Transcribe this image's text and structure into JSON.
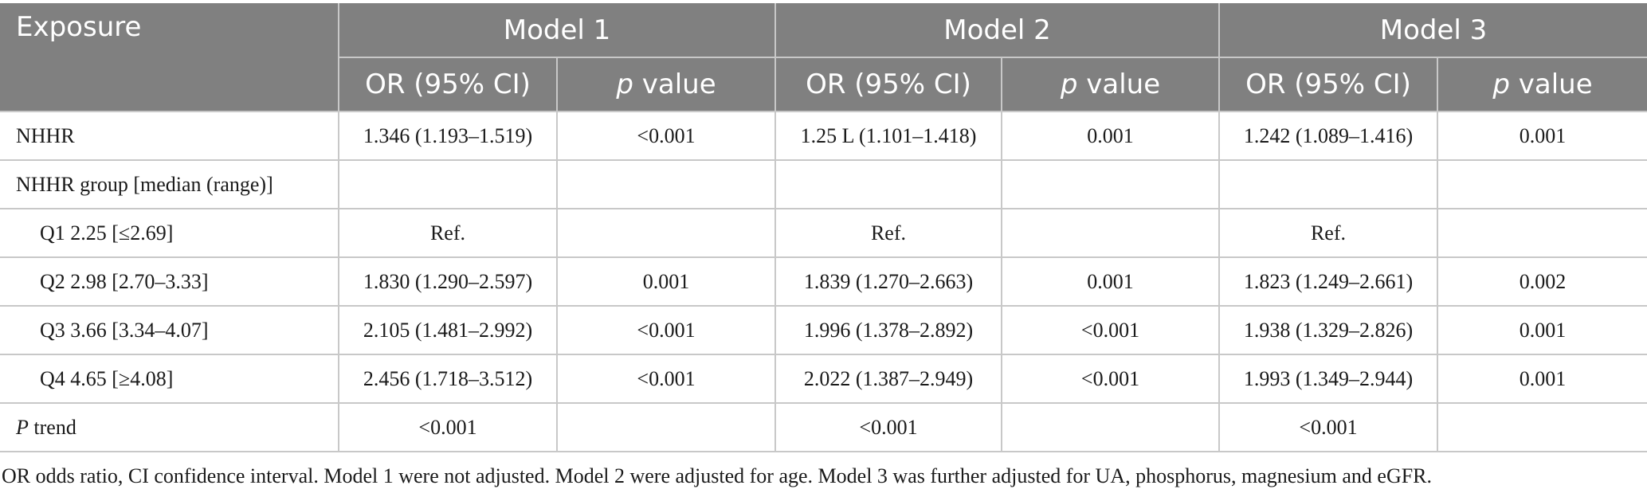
{
  "header": {
    "exposure": "Exposure",
    "models": [
      "Model 1",
      "Model 2",
      "Model 3"
    ],
    "or_label": "OR (95% CI)",
    "p_italic": "p",
    "p_rest": " value"
  },
  "rows": [
    {
      "exposure": "NHHR",
      "m1_or": "1.346 (1.193–1.519)",
      "m1_p": "<0.001",
      "m2_or": "1.25 L (1.101–1.418)",
      "m2_p": "0.001",
      "m3_or": "1.242 (1.089–1.416)",
      "m3_p": "0.001"
    },
    {
      "exposure": "NHHR group [median (range)]",
      "m1_or": "",
      "m1_p": "",
      "m2_or": "",
      "m2_p": "",
      "m3_or": "",
      "m3_p": ""
    },
    {
      "exposure": "Q1 2.25 [≤2.69]",
      "m1_or": "Ref.",
      "m1_p": "",
      "m2_or": "Ref.",
      "m2_p": "",
      "m3_or": "Ref.",
      "m3_p": ""
    },
    {
      "exposure": "Q2 2.98 [2.70–3.33]",
      "m1_or": "1.830 (1.290–2.597)",
      "m1_p": "0.001",
      "m2_or": "1.839 (1.270–2.663)",
      "m2_p": "0.001",
      "m3_or": "1.823 (1.249–2.661)",
      "m3_p": "0.002"
    },
    {
      "exposure": "Q3 3.66 [3.34–4.07]",
      "m1_or": "2.105 (1.481–2.992)",
      "m1_p": "<0.001",
      "m2_or": "1.996 (1.378–2.892)",
      "m2_p": "<0.001",
      "m3_or": "1.938 (1.329–2.826)",
      "m3_p": "0.001"
    },
    {
      "exposure": "Q4 4.65 [≥4.08]",
      "m1_or": "2.456 (1.718–3.512)",
      "m1_p": "<0.001",
      "m2_or": "2.022 (1.387–2.949)",
      "m2_p": "<0.001",
      "m3_or": "1.993 (1.349–2.944)",
      "m3_p": "0.001"
    },
    {
      "exposure_italic": "P",
      "exposure_rest": " trend",
      "m1_or": "<0.001",
      "m1_p": "",
      "m2_or": "<0.001",
      "m2_p": "",
      "m3_or": "<0.001",
      "m3_p": ""
    }
  ],
  "footnote": "OR odds ratio, CI confidence interval. Model 1 were not adjusted. Model 2 were adjusted for age. Model 3 was further adjusted for UA, phosphorus, magnesium and eGFR.",
  "colors": {
    "header_bg": "#808080",
    "header_text": "#ffffff",
    "grid": "#c8c8c8"
  }
}
